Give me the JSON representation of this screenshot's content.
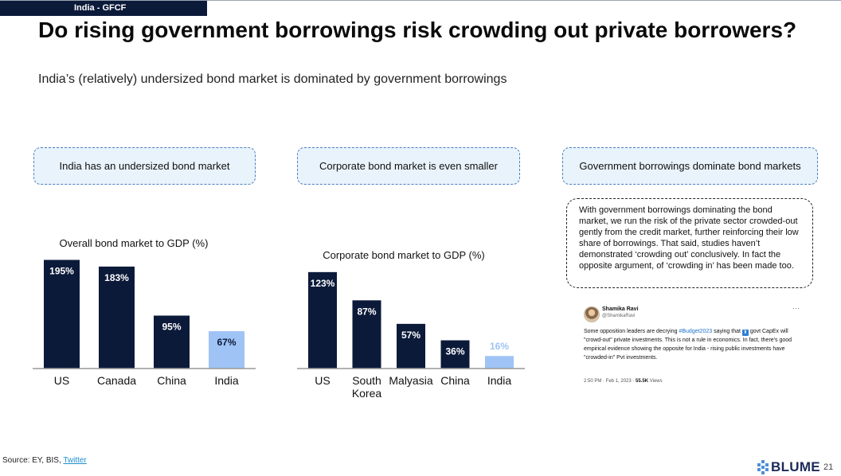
{
  "header": {
    "tag": "India - GFCF",
    "title": "Do rising government borrowings risk crowding out private borrowers?",
    "subtitle": "India’s (relatively) undersized bond market is dominated by government borrowings"
  },
  "panels": [
    {
      "label": "India has an undersized bond market"
    },
    {
      "label": "Corporate bond market is even smaller"
    },
    {
      "label": "Government borrowings dominate bond markets"
    }
  ],
  "note": "With government borrowings dominating the bond market, we run the risk of the private sector crowded-out gently from the credit market, further reinforcing their low share of borrowings.  That said, studies haven’t demonstrated ‘crowding out’ conclusively. In fact the opposite argument, of ‘crowding in’ has been made too.",
  "chart_data": [
    {
      "type": "bar",
      "title": "Overall bond market to GDP (%)",
      "categories": [
        "US",
        "Canada",
        "China",
        "India"
      ],
      "values": [
        195,
        183,
        95,
        67
      ],
      "labels": [
        "195%",
        "183%",
        "95%",
        "67%"
      ],
      "highlight": "India",
      "colors": {
        "bar": "#0c1a3a",
        "highlight": "#9fc3f5",
        "label": "#ffffff",
        "highlight_label": "#0c1a3a"
      }
    },
    {
      "type": "bar",
      "title": "Corporate bond market to GDP (%)",
      "categories": [
        "US",
        "South Korea",
        "Malyasia",
        "China",
        "India"
      ],
      "values": [
        123,
        87,
        57,
        36,
        16
      ],
      "labels": [
        "123%",
        "87%",
        "57%",
        "36%",
        "16%"
      ],
      "highlight": "India",
      "colors": {
        "bar": "#0c1a3a",
        "highlight": "#9fc3f5",
        "label": "#ffffff",
        "highlight_label": "#9fc3f5"
      }
    }
  ],
  "tweet": {
    "name": "Shamika Ravi",
    "handle": "@ShamikaRavi",
    "text_before": "Some opposition leaders are decrying ",
    "hashtag": "#Budget2023",
    "text_mid": " saying that ",
    "flag_glyph": "⬆",
    "text_after": " govt CapEx will \"crowd-out\" private investments. This is not a rule in economics. In fact, there's good empirical evidence showing the opposite for India - rising public investments have \"crowded-in\" Pvt investments.",
    "timestamp": "2:50 PM · Feb 1, 2023 · ",
    "views": "55.5K",
    "views_label": " Views",
    "more": "···"
  },
  "footer": {
    "source_prefix": "Source: EY, BIS, ",
    "source_link": "Twitter",
    "logo": "BLUME",
    "page": "21"
  }
}
